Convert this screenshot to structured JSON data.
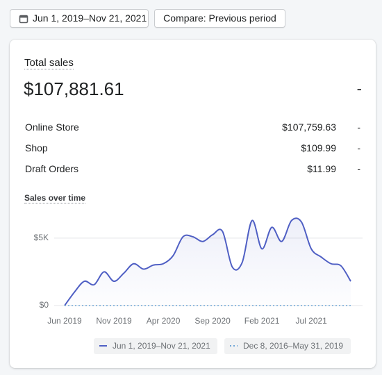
{
  "header": {
    "date_range": "Jun 1, 2019–Nov 21, 2021",
    "compare": "Compare: Previous period"
  },
  "card": {
    "title": "Total sales",
    "total": "$107,881.61",
    "total_change": "-",
    "rows": [
      [
        "Online Store",
        "$107,759.63",
        "-"
      ],
      [
        "Shop",
        "$109.99",
        "-"
      ],
      [
        "Draft Orders",
        "$11.99",
        "-"
      ]
    ],
    "chart_title": "Sales over time"
  },
  "chart_data": {
    "type": "line",
    "categories": [
      "Jun 2019",
      null,
      null,
      null,
      null,
      "Nov 2019",
      null,
      null,
      null,
      null,
      "Apr 2020",
      null,
      null,
      null,
      null,
      "Sep 2020",
      null,
      null,
      null,
      null,
      "Feb 2021",
      null,
      null,
      null,
      null,
      "Jul 2021",
      null,
      null,
      null,
      null
    ],
    "series": [
      {
        "name": "Jun 1, 2019–Nov 21, 2021",
        "color": "#4f5fc4",
        "values": [
          0,
          1000,
          1800,
          1550,
          2500,
          1800,
          2400,
          3100,
          2700,
          3000,
          3100,
          3700,
          5100,
          5100,
          4750,
          5250,
          5500,
          2850,
          3200,
          6300,
          4200,
          5800,
          4750,
          6300,
          6200,
          4200,
          3600,
          3100,
          2950,
          1800
        ]
      },
      {
        "name": "Dec 8, 2016–May 31, 2019",
        "color": "#6fa6d6",
        "dashed": true,
        "values": [
          0,
          0,
          0,
          0,
          0,
          0,
          0,
          0,
          0,
          0,
          0,
          0,
          0,
          0,
          0,
          0,
          0,
          0,
          0,
          0,
          0,
          0,
          0,
          0,
          0,
          0,
          0,
          0,
          0,
          0
        ]
      }
    ],
    "ylim": [
      0,
      7000
    ],
    "yticks": [
      {
        "value": 0,
        "label": "$0"
      },
      {
        "value": 5000,
        "label": "$5K"
      }
    ],
    "grid": true
  }
}
